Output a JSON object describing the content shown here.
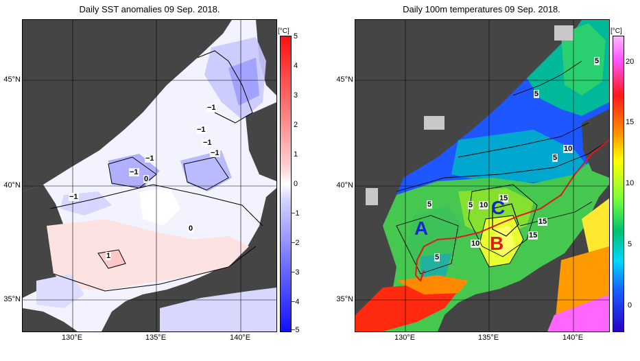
{
  "panels": [
    {
      "title": "Daily SST anomalies 09 Sep. 2018.",
      "unit": "[°C]",
      "colorbar_ticks": [
        "5",
        "4",
        "3",
        "2",
        "1",
        "0",
        "−1",
        "−2",
        "−3",
        "−4",
        "−5"
      ],
      "contour_labels": [
        "−1",
        "−1",
        "−1",
        "−1",
        "−1",
        "−1",
        "0",
        "−1",
        "0",
        "1"
      ]
    },
    {
      "title": "Daily 100m temperatures 09 Sep. 2018.",
      "unit": "[°C]",
      "colorbar_ticks": [
        "20",
        "15",
        "10",
        "5",
        "0"
      ],
      "contour_labels": [
        "5",
        "5",
        "10",
        "5",
        "5",
        "5",
        "10",
        "15",
        "15",
        "15",
        "10",
        "5"
      ],
      "region_letters": [
        {
          "text": "A",
          "color": "#1428d0"
        },
        {
          "text": "B",
          "color": "#e01818"
        },
        {
          "text": "C",
          "color": "#1428d0"
        }
      ]
    }
  ],
  "lat_labels": [
    "45°N",
    "40°N",
    "35°N"
  ],
  "lon_labels": [
    "130°E",
    "135°E",
    "140°E"
  ],
  "colors": {
    "land": "#454545",
    "anomaly_positive": "#ff1010",
    "anomaly_negative": "#1010ff",
    "front_line": "#e01818"
  }
}
